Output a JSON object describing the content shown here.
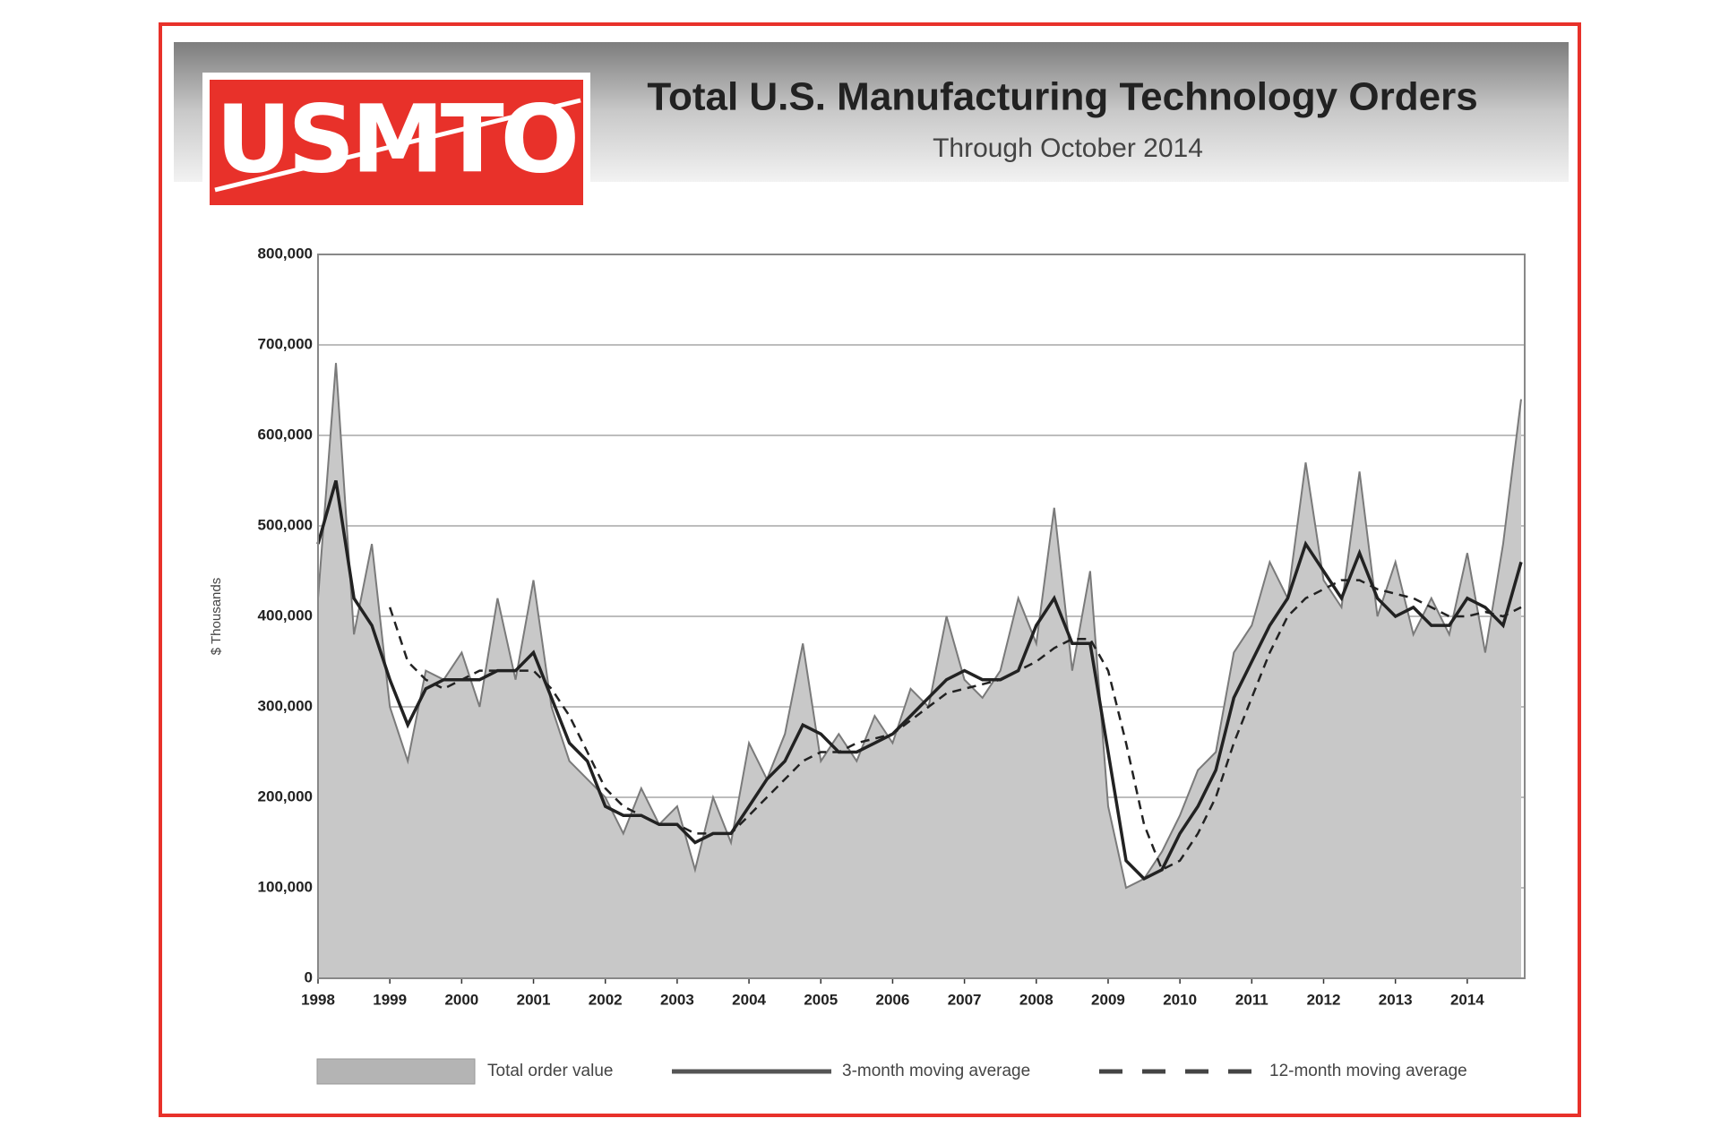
{
  "logo": "USMTO",
  "chart_data": {
    "type": "line",
    "title": "Total U.S. Manufacturing Technology Orders",
    "subtitle": "Through October 2014",
    "y_label": "$ Thousands",
    "xlim": [
      1998,
      2014.8
    ],
    "xticks": [
      1998,
      1999,
      2000,
      2001,
      2002,
      2003,
      2004,
      2005,
      2006,
      2007,
      2008,
      2009,
      2010,
      2011,
      2012,
      2013,
      2014
    ],
    "ylim": [
      0,
      800000
    ],
    "yticks": [
      0,
      {
        "value": 100000,
        "label": "100,000"
      },
      {
        "value": 200000,
        "label": "200,000"
      },
      {
        "value": 300000,
        "label": "300,000"
      },
      {
        "value": 400000,
        "label": "400,000"
      },
      {
        "value": 500000,
        "label": "500,000"
      },
      {
        "value": 600000,
        "label": "600,000"
      },
      {
        "value": 700000,
        "label": "700,000"
      },
      {
        "value": 800000,
        "label": "800,000"
      }
    ],
    "grid": true,
    "x": [
      1998,
      1998.25,
      1998.5,
      1998.75,
      1999,
      1999.25,
      1999.5,
      1999.75,
      2000,
      2000.25,
      2000.5,
      2000.75,
      2001,
      2001.25,
      2001.5,
      2001.75,
      2002,
      2002.25,
      2002.5,
      2002.75,
      2003,
      2003.25,
      2003.5,
      2003.75,
      2004,
      2004.25,
      2004.5,
      2004.75,
      2005,
      2005.25,
      2005.5,
      2005.75,
      2006,
      2006.25,
      2006.5,
      2006.75,
      2007,
      2007.25,
      2007.5,
      2007.75,
      2008,
      2008.25,
      2008.5,
      2008.75,
      2009,
      2009.25,
      2009.5,
      2009.75,
      2010,
      2010.25,
      2010.5,
      2010.75,
      2011,
      2011.25,
      2011.5,
      2011.75,
      2012,
      2012.25,
      2012.5,
      2012.75,
      2013,
      2013.25,
      2013.5,
      2013.75,
      2014,
      2014.25,
      2014.5,
      2014.75
    ],
    "series": [
      {
        "name": "Total order value",
        "style": "area",
        "color": "#c8c8c8",
        "values": [
          420000,
          680000,
          380000,
          480000,
          300000,
          240000,
          340000,
          330000,
          360000,
          300000,
          420000,
          330000,
          440000,
          300000,
          240000,
          220000,
          200000,
          160000,
          210000,
          170000,
          190000,
          120000,
          200000,
          150000,
          260000,
          220000,
          270000,
          370000,
          240000,
          270000,
          240000,
          290000,
          260000,
          320000,
          300000,
          400000,
          330000,
          310000,
          340000,
          420000,
          370000,
          520000,
          340000,
          450000,
          190000,
          100000,
          110000,
          140000,
          180000,
          230000,
          250000,
          360000,
          390000,
          460000,
          420000,
          570000,
          440000,
          410000,
          560000,
          400000,
          460000,
          380000,
          420000,
          380000,
          470000,
          360000,
          480000,
          640000
        ]
      },
      {
        "name": "3-month moving average",
        "style": "solid",
        "color": "#222222",
        "values": [
          480000,
          550000,
          420000,
          390000,
          330000,
          280000,
          320000,
          330000,
          330000,
          330000,
          340000,
          340000,
          360000,
          310000,
          260000,
          240000,
          190000,
          180000,
          180000,
          170000,
          170000,
          150000,
          160000,
          160000,
          190000,
          220000,
          240000,
          280000,
          270000,
          250000,
          250000,
          260000,
          270000,
          290000,
          310000,
          330000,
          340000,
          330000,
          330000,
          340000,
          390000,
          420000,
          370000,
          370000,
          250000,
          130000,
          110000,
          120000,
          160000,
          190000,
          230000,
          310000,
          350000,
          390000,
          420000,
          480000,
          450000,
          420000,
          470000,
          420000,
          400000,
          410000,
          390000,
          390000,
          420000,
          410000,
          390000,
          460000
        ]
      },
      {
        "name": "12-month moving average",
        "style": "dashed",
        "color": "#222222",
        "values": [
          null,
          null,
          null,
          null,
          410000,
          350000,
          330000,
          320000,
          330000,
          340000,
          340000,
          340000,
          340000,
          320000,
          290000,
          250000,
          210000,
          190000,
          180000,
          170000,
          170000,
          160000,
          160000,
          160000,
          180000,
          200000,
          220000,
          240000,
          250000,
          250000,
          260000,
          265000,
          270000,
          285000,
          300000,
          315000,
          320000,
          325000,
          330000,
          340000,
          350000,
          365000,
          375000,
          375000,
          340000,
          260000,
          170000,
          120000,
          130000,
          160000,
          200000,
          260000,
          310000,
          360000,
          400000,
          420000,
          430000,
          440000,
          440000,
          430000,
          425000,
          420000,
          410000,
          400000,
          400000,
          405000,
          400000,
          410000
        ]
      }
    ]
  }
}
